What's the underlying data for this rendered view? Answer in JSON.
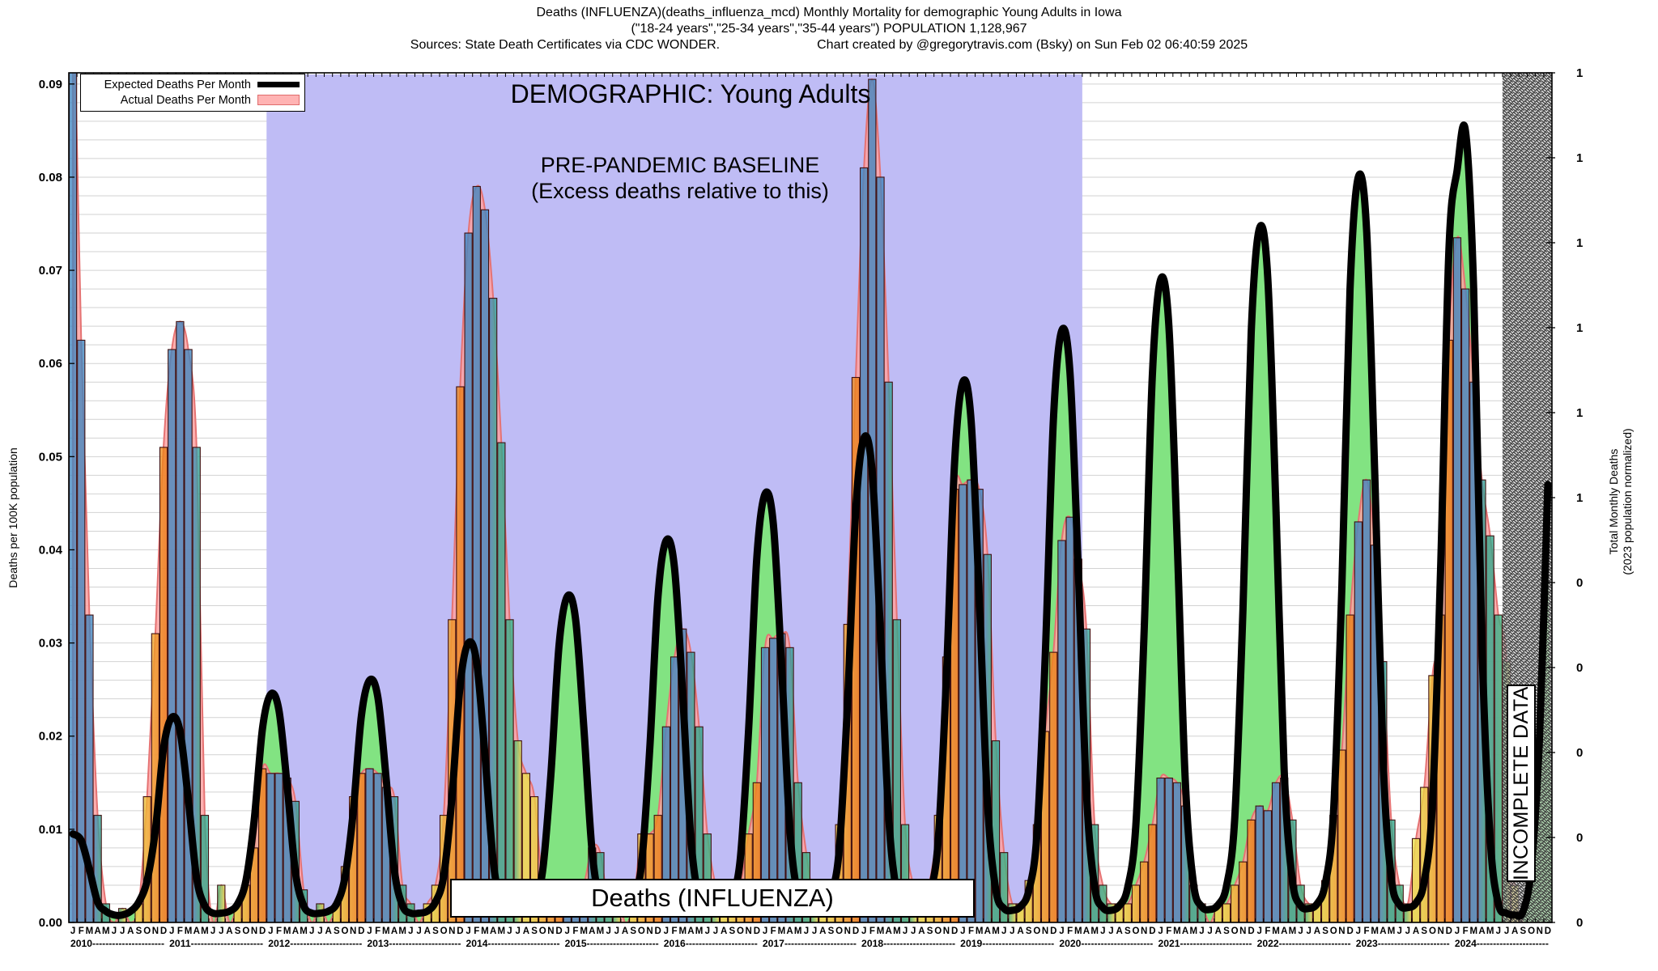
{
  "title": {
    "line1": "Deaths (INFLUENZA)(deaths_influenza_mcd) Monthly Mortality for demographic Young Adults in Iowa",
    "line2": "(\"18-24 years\",\"25-34 years\",\"35-44 years\") POPULATION 1,128,967",
    "line3_left": "Sources: State Death Certificates via CDC WONDER.",
    "line3_right": "Chart created by @gregorytravis.com (Bsky) on Sun Feb 02 06:40:59 2025"
  },
  "legend": {
    "expected": "Expected Deaths Per Month",
    "actual": "Actual Deaths Per Month"
  },
  "annotations": {
    "demographic": "DEMOGRAPHIC: Young Adults",
    "baseline1": "PRE-PANDEMIC BASELINE",
    "baseline2": "(Excess deaths relative to this)",
    "chart_label": "Deaths (INFLUENZA)",
    "incomplete": "INCOMPLETE DATA"
  },
  "axes": {
    "left_label": "Deaths per 100K population",
    "right_label1": "Total Monthly Deaths",
    "right_label2": "(2023 population normalized)",
    "left_ticks": [
      "0.00",
      "0.01",
      "0.02",
      "0.03",
      "0.04",
      "0.05",
      "0.06",
      "0.07",
      "0.08",
      "0.09"
    ],
    "right_ticks": [
      "1",
      "1",
      "1",
      "1",
      "1",
      "1",
      "0",
      "0",
      "0",
      "0",
      "0"
    ],
    "month_letters": "JFMAMJJASOND",
    "years": [
      "2010",
      "2011",
      "2012",
      "2013",
      "2014",
      "2015",
      "2016",
      "2017",
      "2018",
      "2019",
      "2020",
      "2021",
      "2022",
      "2023",
      "2024"
    ]
  },
  "chart_data": {
    "type": "combo-bar-line-area",
    "title": "Deaths (INFLUENZA) monthly mortality, Young Adults, Iowa",
    "ylabel": "Deaths per 100K population",
    "ylabel_right": "Total Monthly Deaths (2023 population normalized)",
    "ylim": [
      0,
      0.0912
    ],
    "start_year": 2010,
    "end_year": 2024,
    "baseline_band_month_range": [
      24,
      123
    ],
    "incomplete_band_month_range": [
      174,
      180
    ],
    "expected_monthly": [
      [
        0.0095,
        0.0088,
        0.0057,
        0.0022,
        0.0012,
        0.0008,
        0.0008,
        0.0012,
        0.0022,
        0.0045,
        0.0099,
        0.0187
      ],
      [
        0.022,
        0.0205,
        0.0132,
        0.0048,
        0.0018,
        0.001,
        0.001,
        0.0012,
        0.002,
        0.0045,
        0.011,
        0.0208
      ],
      [
        0.0245,
        0.0228,
        0.0147,
        0.0054,
        0.0018,
        0.001,
        0.001,
        0.0012,
        0.002,
        0.0048,
        0.0117,
        0.0221
      ],
      [
        0.026,
        0.0242,
        0.0156,
        0.0057,
        0.0018,
        0.001,
        0.001,
        0.0012,
        0.0022,
        0.005,
        0.0135,
        0.0255
      ],
      [
        0.03,
        0.0279,
        0.018,
        0.0066,
        0.002,
        0.001,
        0.001,
        0.0013,
        0.0024,
        0.0055,
        0.0158,
        0.0298
      ],
      [
        0.035,
        0.0326,
        0.021,
        0.0077,
        0.0022,
        0.0011,
        0.001,
        0.0013,
        0.0026,
        0.0062,
        0.0185,
        0.0349
      ],
      [
        0.041,
        0.0381,
        0.0246,
        0.009,
        0.0025,
        0.0012,
        0.001,
        0.0014,
        0.0028,
        0.0069,
        0.0207,
        0.0391
      ],
      [
        0.046,
        0.0428,
        0.0276,
        0.0101,
        0.0028,
        0.0013,
        0.0011,
        0.0015,
        0.003,
        0.0078,
        0.0234,
        0.0442
      ],
      [
        0.052,
        0.0484,
        0.0312,
        0.0114,
        0.0031,
        0.0014,
        0.0012,
        0.0016,
        0.0032,
        0.0087,
        0.0261,
        0.0493
      ],
      [
        0.058,
        0.0539,
        0.0348,
        0.0128,
        0.0035,
        0.0015,
        0.0013,
        0.0017,
        0.0034,
        0.0095,
        0.0286,
        0.054
      ],
      [
        0.0635,
        0.0591,
        0.0381,
        0.014,
        0.0038,
        0.0016,
        0.0013,
        0.0018,
        0.0037,
        0.0104,
        0.0311,
        0.0587
      ],
      [
        0.069,
        0.0642,
        0.0414,
        0.0152,
        0.0041,
        0.0017,
        0.0014,
        0.0019,
        0.0039,
        0.0112,
        0.0335,
        0.0633
      ],
      [
        0.0745,
        0.0693,
        0.0447,
        0.0164,
        0.0045,
        0.0018,
        0.0015,
        0.002,
        0.0042,
        0.012,
        0.036,
        0.068
      ],
      [
        0.08,
        0.0744,
        0.048,
        0.0176,
        0.0048,
        0.0019,
        0.0016,
        0.0021,
        0.0044,
        0.0128,
        0.0383,
        0.0723
      ],
      [
        0.0808,
        0.085,
        0.068,
        0.03,
        0.009,
        0.002,
        0.001,
        0.0008,
        0.0012,
        0.006,
        0.02,
        0.047
      ]
    ],
    "actual_monthly": [
      [
        0.105,
        0.0625,
        0.033,
        0.0115,
        0.002,
        0.0,
        0.0015,
        0.0,
        0.002,
        0.0135,
        0.031,
        0.051
      ],
      [
        0.0615,
        0.0645,
        0.0615,
        0.051,
        0.0115,
        0.0,
        0.004,
        0.0,
        0.002,
        0.004,
        0.008,
        0.0165
      ],
      [
        0.016,
        0.016,
        0.0155,
        0.013,
        0.0035,
        0.0,
        0.002,
        0.0,
        0.002,
        0.006,
        0.0135,
        0.016
      ],
      [
        0.0165,
        0.016,
        0.0145,
        0.0135,
        0.004,
        0.002,
        0.0,
        0.002,
        0.004,
        0.0115,
        0.0325,
        0.0575
      ],
      [
        0.074,
        0.079,
        0.0765,
        0.067,
        0.0515,
        0.0325,
        0.0195,
        0.016,
        0.0135,
        0.004,
        0.002,
        0.004
      ],
      [
        0.004,
        0.002,
        0.004,
        0.008,
        0.0075,
        0.002,
        0.004,
        0.0,
        0.002,
        0.0095,
        0.0095,
        0.0115
      ],
      [
        0.021,
        0.0285,
        0.0315,
        0.029,
        0.021,
        0.0095,
        0.004,
        0.002,
        0.002,
        0.004,
        0.0095,
        0.015
      ],
      [
        0.0295,
        0.0305,
        0.031,
        0.0295,
        0.015,
        0.0075,
        0.002,
        0.002,
        0.002,
        0.0105,
        0.032,
        0.0585
      ],
      [
        0.081,
        0.0905,
        0.08,
        0.058,
        0.0325,
        0.0105,
        0.004,
        0.002,
        0.0045,
        0.0115,
        0.0285,
        0.0465
      ],
      [
        0.047,
        0.0475,
        0.0465,
        0.0395,
        0.0195,
        0.0075,
        0.002,
        0.002,
        0.0045,
        0.0105,
        0.0205,
        0.029
      ],
      [
        0.041,
        0.0435,
        0.039,
        0.0315,
        0.0105,
        0.004,
        0.002,
        0.002,
        0.002,
        0.004,
        0.0065,
        0.0105
      ],
      [
        0.0155,
        0.0155,
        0.015,
        0.0125,
        0.004,
        0.002,
        0.0,
        0.002,
        0.002,
        0.004,
        0.0065,
        0.011
      ],
      [
        0.0125,
        0.012,
        0.015,
        0.0155,
        0.011,
        0.004,
        0.002,
        0.002,
        0.0045,
        0.0115,
        0.0185,
        0.033
      ],
      [
        0.043,
        0.0475,
        0.0405,
        0.028,
        0.011,
        0.004,
        0.002,
        0.009,
        0.0145,
        0.0265,
        0.033,
        0.0625
      ],
      [
        0.0735,
        0.068,
        0.058,
        0.0475,
        0.0415,
        0.033,
        0.028,
        0.004,
        0.0,
        0.0,
        0.0,
        0.0
      ]
    ],
    "colors": {
      "lavender": "#bfbcf5",
      "green": "#82e382",
      "pink_fill": "#ffa2a2",
      "pink_opacity": 0.85,
      "pink_stroke": "#e57373",
      "expected_line": "#000000",
      "grid": "#d2d2d2",
      "bar_border": "#401010",
      "bar_opacity": 0.78,
      "month_colors": [
        "#3f86c0",
        "#3f86c0",
        "#3f86c0",
        "#2fa98c",
        "#2fa98c",
        "#3cb87e",
        "#e9e24e",
        "#e9de48",
        "#ecc63a",
        "#f0a62c",
        "#ee8e1e",
        "#ea7814"
      ]
    }
  }
}
